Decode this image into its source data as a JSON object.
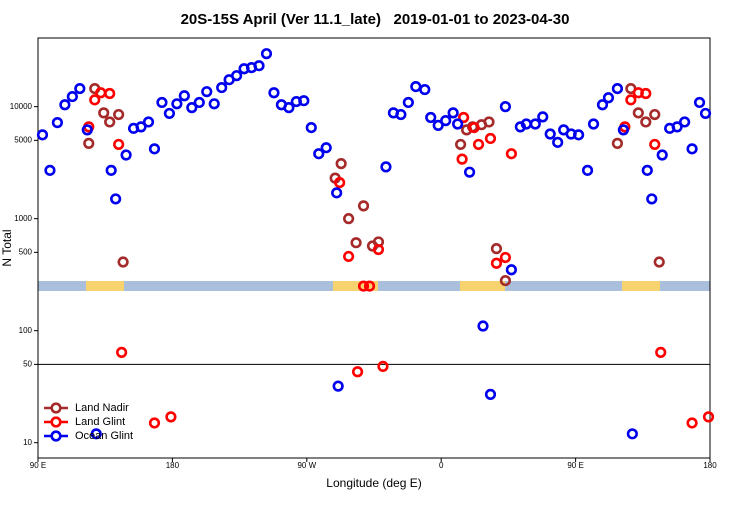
{
  "chart_data": {
    "type": "scatter",
    "title": "20S-15S April (Ver 11.1_late)   2019-01-01 to 2023-04-30",
    "x_label": "Longitude (deg E)",
    "y_label": "N Total",
    "xlim": [
      90,
      540
    ],
    "xticks": [
      {
        "value": 90,
        "label": "90 E"
      },
      180,
      {
        "value": 270,
        "label": "90 W"
      },
      {
        "value": 360,
        "label": "0"
      },
      {
        "value": 450,
        "label": "90 E"
      },
      {
        "value": 540,
        "label": "180"
      }
    ],
    "ylim": [
      7.3,
      41000
    ],
    "y_scale": "log",
    "yticks": [
      10,
      50,
      100,
      500,
      1000,
      5000,
      10000
    ],
    "reference_line": 50,
    "legend": "lower left",
    "series": [
      {
        "name": "Land Nadir",
        "color": "#a52a2a",
        "x": [
          124,
          128,
          134,
          138,
          144,
          147,
          289,
          293,
          298,
          303,
          308,
          314,
          318,
          373,
          377,
          381,
          387,
          392,
          397,
          403,
          478,
          487,
          492,
          497,
          503,
          506
        ],
        "values": [
          4700,
          14500,
          8800,
          7300,
          8500,
          410,
          2300,
          3100,
          1000,
          610,
          1300,
          570,
          620,
          4600,
          6200,
          6600,
          6900,
          7300,
          540,
          280,
          4700,
          14500,
          8800,
          7300,
          8500,
          410
        ]
      },
      {
        "name": "Land Glint",
        "color": "#ff0000",
        "x": [
          124,
          128,
          132,
          138,
          144,
          146,
          168,
          179,
          292,
          298,
          304,
          308,
          312,
          318,
          321,
          375,
          374,
          382,
          385,
          393,
          397,
          403,
          407,
          483,
          487,
          492,
          497,
          503,
          507,
          528,
          539
        ],
        "values": [
          6600,
          11500,
          13300,
          13100,
          4600,
          64,
          15,
          17,
          2100,
          460,
          43,
          250,
          250,
          530,
          48,
          8000,
          3400,
          6500,
          4600,
          5200,
          400,
          450,
          3800,
          6600,
          11500,
          13300,
          13100,
          4600,
          64,
          15,
          17
        ]
      },
      {
        "name": "Ocean Glint",
        "color": "#0000ee",
        "x": [
          93,
          98,
          103,
          108,
          113,
          118,
          123,
          129,
          139,
          142,
          149,
          154,
          159,
          164,
          168,
          173,
          178,
          183,
          188,
          193,
          198,
          203,
          208,
          213,
          218,
          223,
          228,
          233,
          238,
          243,
          248,
          253,
          258,
          263,
          268,
          273,
          278,
          283,
          290,
          291,
          323,
          328,
          333,
          338,
          343,
          349,
          353,
          358,
          363,
          368,
          371,
          379,
          388,
          393,
          403,
          407,
          413,
          417,
          423,
          428,
          433,
          438,
          442,
          447,
          452,
          458,
          462,
          468,
          472,
          478,
          482,
          488,
          498,
          501,
          508,
          513,
          518,
          523,
          528,
          533,
          537
        ],
        "values": [
          5600,
          2700,
          7200,
          10400,
          12300,
          14500,
          6200,
          12,
          2700,
          1500,
          3700,
          6400,
          6600,
          7300,
          4200,
          10900,
          8700,
          10600,
          12500,
          9800,
          10900,
          13600,
          10600,
          14800,
          17400,
          18900,
          21800,
          22300,
          23200,
          29700,
          13300,
          10400,
          9800,
          11100,
          11300,
          6500,
          3800,
          4300,
          1700,
          32,
          2900,
          8800,
          8500,
          10900,
          15100,
          14200,
          8000,
          6800,
          7500,
          8800,
          7000,
          2600,
          110,
          27,
          10000,
          350,
          6600,
          7000,
          7000,
          8100,
          5700,
          4800,
          6200,
          5700,
          5600,
          2700,
          7000,
          10400,
          12000,
          14500,
          6200,
          12,
          2700,
          1500,
          3700,
          6400,
          6600,
          7300,
          4200,
          10900,
          8700
        ]
      }
    ]
  }
}
